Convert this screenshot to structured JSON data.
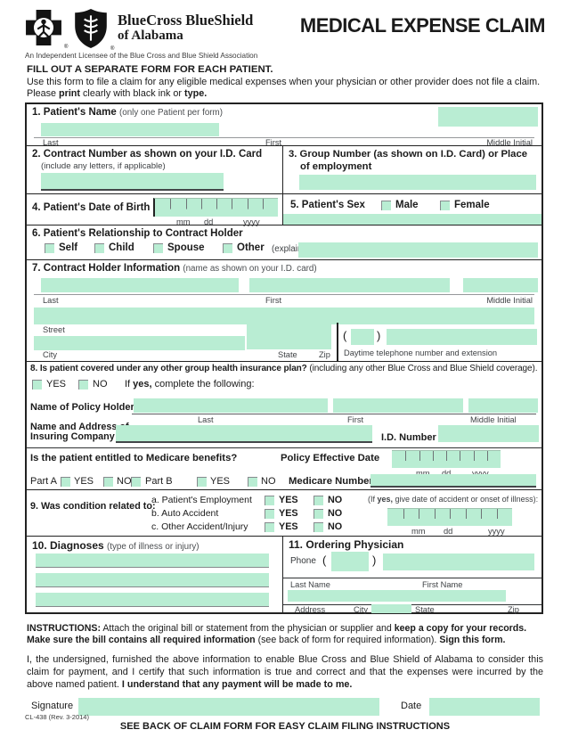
{
  "colors": {
    "field_green": "#b9edd3",
    "table_border": "#222222"
  },
  "header": {
    "brand_line1": "BlueCross BlueShield",
    "brand_line2": "of Alabama",
    "reg_mark": "®",
    "licensee": "An Independent Licensee of the Blue Cross and Blue Shield Association",
    "title": "MEDICAL EXPENSE CLAIM"
  },
  "intro": {
    "line1": "FILL OUT A SEPARATE FORM FOR EACH PATIENT.",
    "line2": "Use this form to file a claim for any eligible medical expenses when your physician or other provider does not file a claim.",
    "line3_pre": "Please ",
    "line3_bold1": "print",
    "line3_mid": " clearly with black ink or ",
    "line3_bold2": "type."
  },
  "common": {
    "yes": "YES",
    "no": "NO"
  },
  "date_labels": {
    "mm": "mm",
    "dd": "dd",
    "yyyy": "yyyy"
  },
  "s1": {
    "title": "1. Patient's Name",
    "hint": "(only one Patient per form)",
    "last": "Last",
    "first": "First",
    "middle_initial": "Middle Initial"
  },
  "s2": {
    "title": "2. Contract Number as shown on your I.D. Card",
    "hint": "(include any letters, if applicable)"
  },
  "s3": {
    "title": "3. Group Number (as shown on I.D. Card) or Place of employment"
  },
  "s4": {
    "title": "4. Patient's Date of Birth"
  },
  "s5": {
    "title": "5. Patient's Sex",
    "male": "Male",
    "female": "Female"
  },
  "s6": {
    "title": "6. Patient's Relationship to Contract Holder",
    "self": "Self",
    "child": "Child",
    "spouse": "Spouse",
    "other": "Other",
    "explain": "(explain)"
  },
  "s7": {
    "title": "7. Contract Holder Information",
    "hint": "(name as shown on your I.D. card)",
    "last": "Last",
    "first": "First",
    "middle_initial": "Middle Initial",
    "street": "Street",
    "city": "City",
    "state": "State",
    "zip": "Zip",
    "phone_label": "Daytime telephone number and extension",
    "paren_open": "(",
    "paren_close": ")"
  },
  "s8": {
    "question_bold": "8. Is patient covered under any other group health insurance plan?",
    "question_rest": " (including any other Blue Cross and Blue Shield coverage).",
    "if_yes_pre": "If ",
    "if_yes_bold": "yes,",
    "if_yes_rest": " complete the following:",
    "policy_holder": "Name of Policy Holder",
    "last": "Last",
    "first": "First",
    "middle_initial": "Middle Initial",
    "insuring_line1": "Name and Address of",
    "insuring_line2": "Insuring Company",
    "id_number": "I.D. Number",
    "medicare_question": "Is the patient entitled to Medicare benefits?",
    "policy_effective_date": "Policy Effective Date",
    "part_a": "Part A",
    "part_b": "Part B",
    "medicare_number": "Medicare Number"
  },
  "s9": {
    "title": "9. Was condition related to:",
    "items": [
      "a. Patient's Employment",
      "b. Auto Accident",
      "c. Other Accident/Injury"
    ],
    "if_yes_pre": "(If ",
    "if_yes_bold": "yes,",
    "if_yes_rest": " give date of accident or onset of illness):"
  },
  "s10": {
    "title": "10. Diagnoses",
    "hint": "(type of illness or injury)"
  },
  "s11": {
    "title": "11. Ordering Physician",
    "phone": "Phone",
    "paren_open": "(",
    "paren_close": ")",
    "last_name": "Last Name",
    "first_name": "First Name",
    "address": "Address",
    "city": "City",
    "state": "State",
    "zip": "Zip"
  },
  "footer": {
    "instructions_label": "INSTRUCTIONS:",
    "instructions_1": " Attach the original bill or statement from the physician or supplier and ",
    "instructions_1_bold": "keep a copy for your records.",
    "instructions_2_bold": "Make sure the bill contains all required information",
    "instructions_2": " (see back of form for required information). ",
    "instructions_3_bold": "Sign this form.",
    "certification_text": "I, the undersigned, furnished the above information to enable Blue Cross and Blue Shield of Alabama to consider this claim for payment, and I certify that such information is true and correct and that the expenses were incurred by the above named patient. ",
    "certification_bold": "I understand that any payment will be made to me.",
    "signature_label": "Signature",
    "date_label": "Date",
    "see_back": "SEE BACK OF CLAIM FORM FOR EASY CLAIM FILING INSTRUCTIONS",
    "form_code": "CL-438 (Rev. 3-2014)"
  }
}
